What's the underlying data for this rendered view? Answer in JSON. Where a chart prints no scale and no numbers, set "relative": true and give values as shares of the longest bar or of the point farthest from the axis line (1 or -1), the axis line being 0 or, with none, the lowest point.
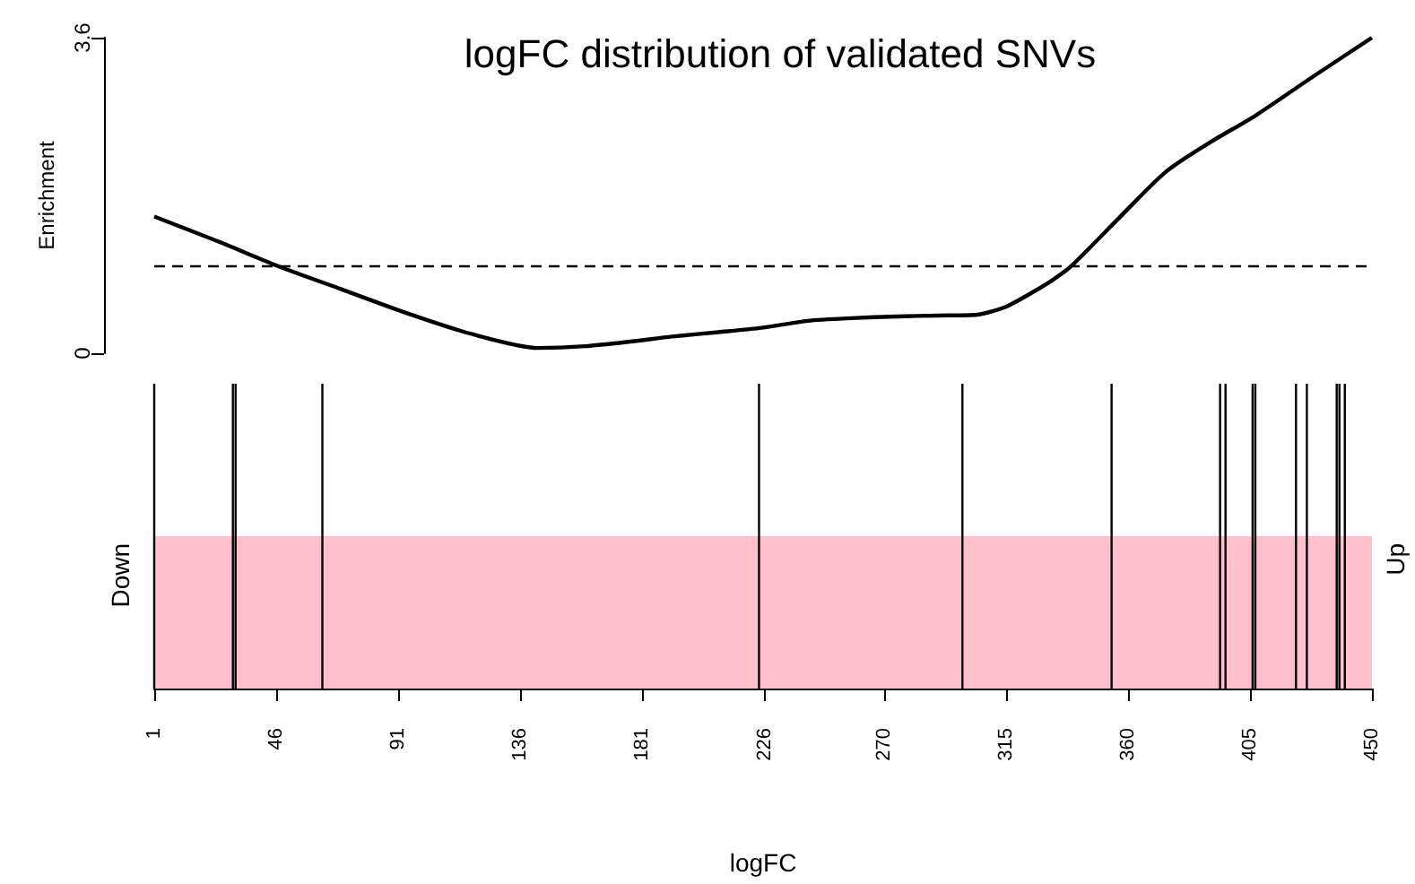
{
  "chart_data": [
    {
      "type": "line",
      "title": "logFC distribution of validated SNVs",
      "ylabel": "Enrichment",
      "x": [
        1,
        25,
        47,
        70,
        93,
        118,
        142.5,
        160,
        176,
        192,
        209,
        225,
        242,
        258,
        275,
        290,
        304.5,
        315,
        324,
        332,
        339,
        356,
        374,
        390,
        407,
        428,
        450
      ],
      "series": [
        {
          "color": "#000000",
          "values": [
            1.56,
            1.27,
            0.99,
            0.73,
            0.47,
            0.22,
            0.06,
            0.08,
            0.13,
            0.19,
            0.24,
            0.29,
            0.37,
            0.4,
            0.42,
            0.43,
            0.44,
            0.53,
            0.68,
            0.83,
            0.99,
            1.52,
            2.07,
            2.4,
            2.71,
            3.15,
            3.6
          ]
        }
      ],
      "xlim": [
        1,
        450
      ],
      "ylim": [
        0,
        3.6
      ],
      "yticks": [
        0,
        3.6
      ],
      "tick_labels": "y",
      "grid": false,
      "marker": "none",
      "line_style": "solid",
      "ref_lines": [
        {
          "axis": "y",
          "value": 1,
          "label": null,
          "line_style": "dashed",
          "color": "#000000"
        }
      ]
    },
    {
      "type": "bar",
      "relative": true,
      "xlabel": "logFC",
      "xlim": [
        1,
        450
      ],
      "xticks": [
        1,
        46,
        91,
        136,
        181,
        226,
        270,
        315,
        360,
        405,
        450
      ],
      "tick_labels": "x",
      "annotations": [
        "Down",
        "Up"
      ],
      "x": [
        1,
        30,
        31,
        63,
        224,
        299,
        354,
        394,
        396,
        406,
        407,
        422,
        426,
        437,
        438,
        440
      ],
      "values": [
        1,
        1,
        1,
        1,
        1,
        1,
        1,
        1,
        1,
        1,
        1,
        1,
        1,
        1,
        1,
        1
      ],
      "color": "#000000",
      "bands": [
        {
          "axis": "x",
          "from": 1,
          "to": 450,
          "label": null,
          "color": "#ffc0cb"
        }
      ]
    }
  ]
}
